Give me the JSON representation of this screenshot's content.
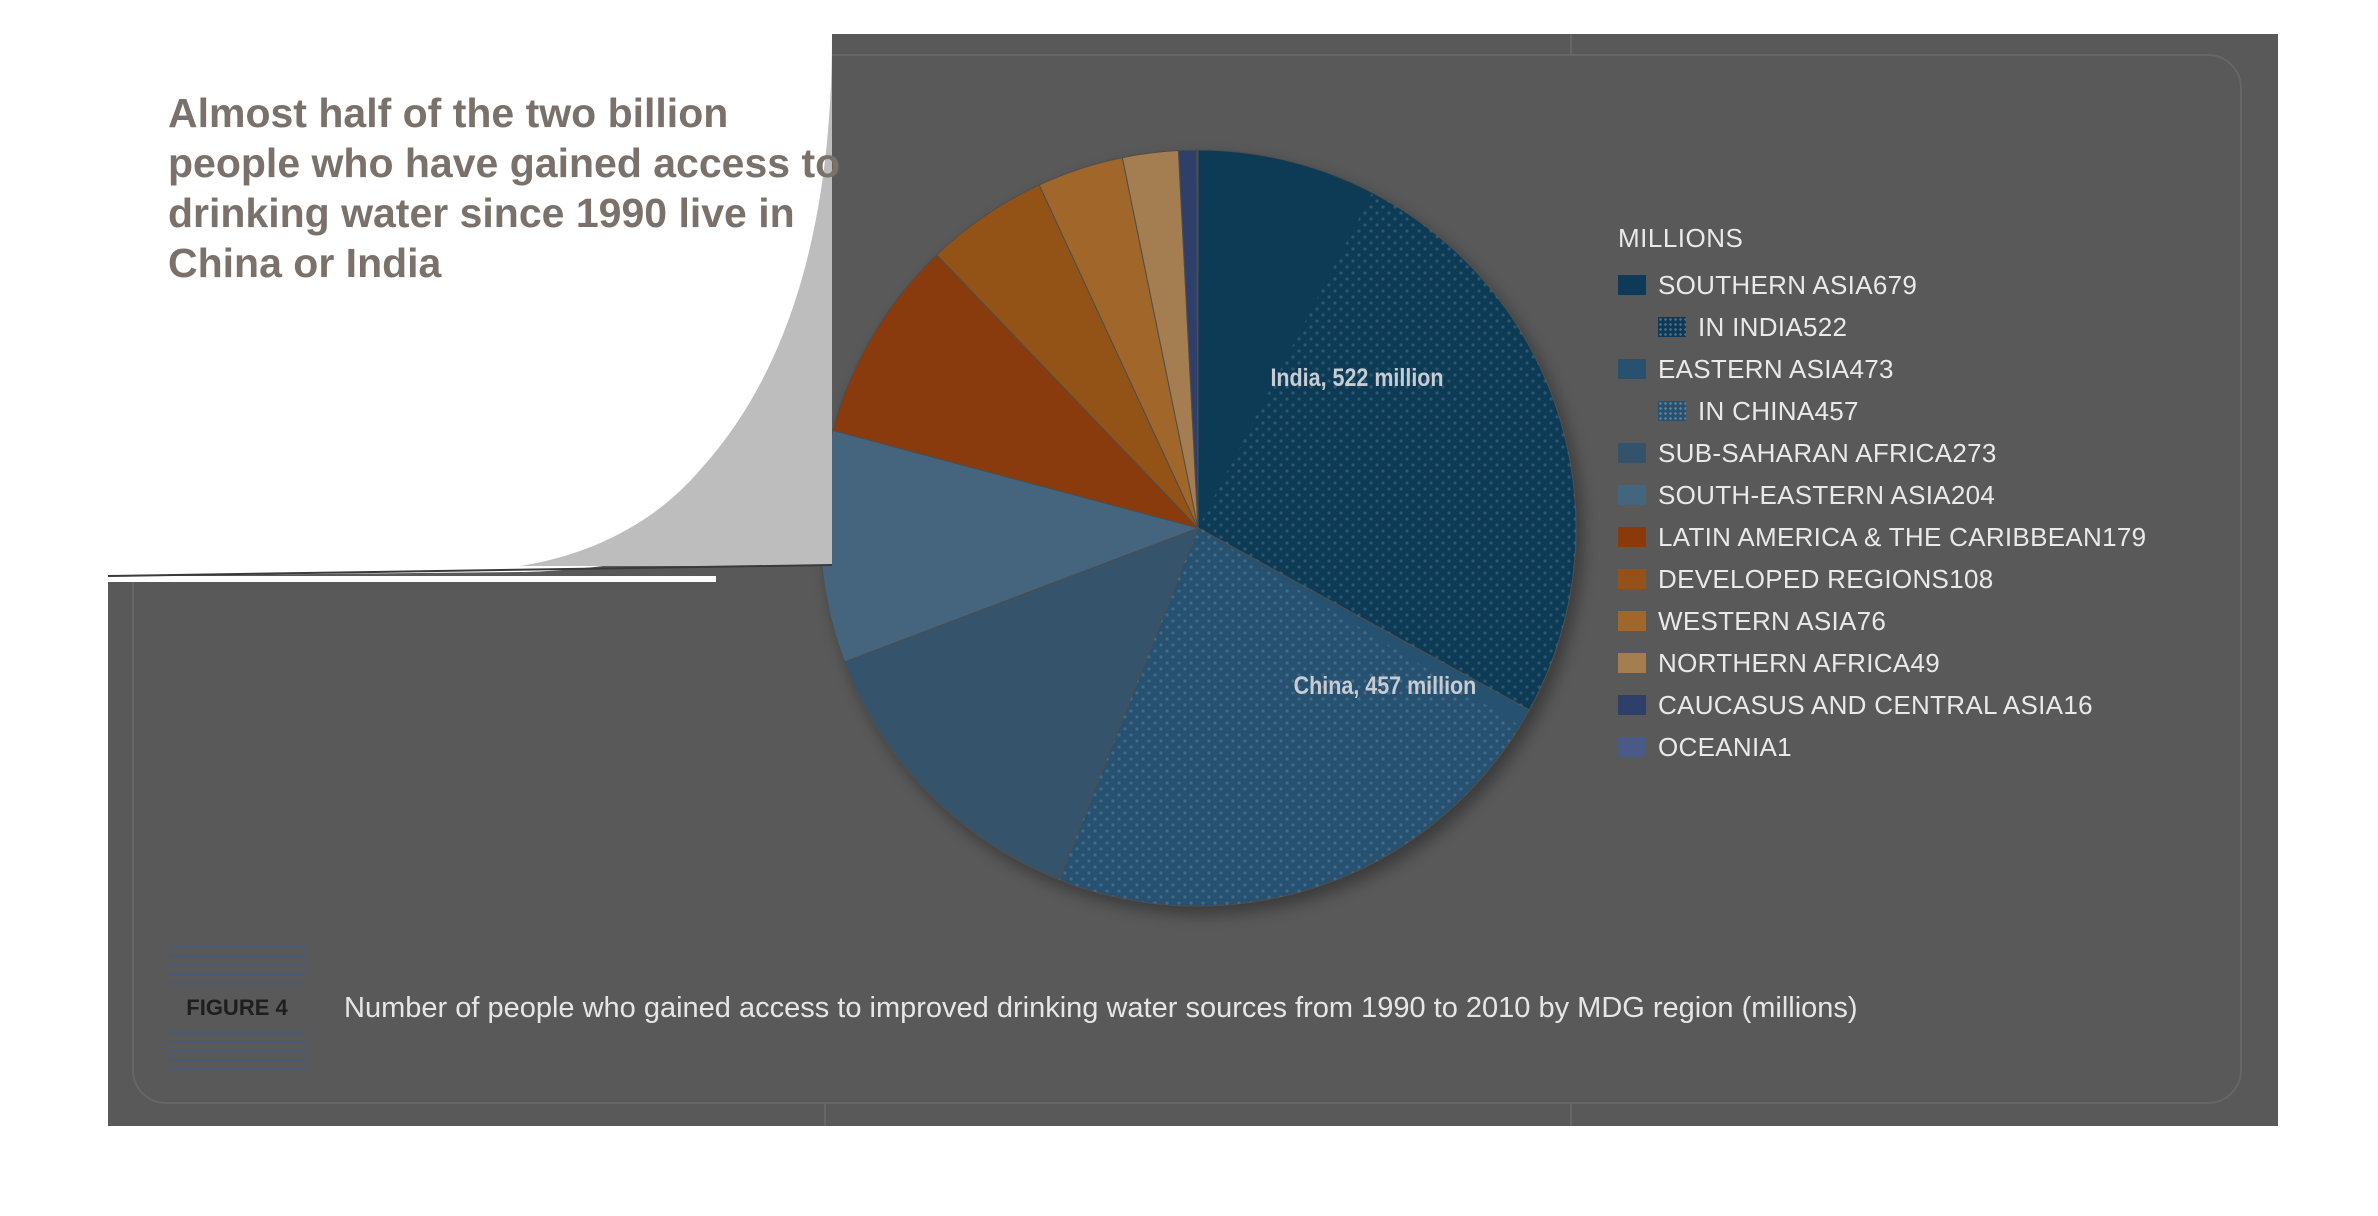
{
  "headline": "Almost half of the two billion people who have gained access to drinking water since 1990 live in China or India",
  "figure": {
    "label": "FIGURE 4",
    "caption": "Number of people who gained access to improved drinking water sources from 1990 to 2010 by MDG region (millions)"
  },
  "chart_data": {
    "type": "pie",
    "unit": "MILLIONS",
    "start_angle_deg": 0,
    "direction": "clockwise",
    "legend_position": "right",
    "slices": [
      {
        "label": "SOUTHERN ASIA",
        "value": 679,
        "color": "#0f3a57",
        "sub": {
          "label": "IN INDIA",
          "value": 522,
          "color": "#0f3a57"
        }
      },
      {
        "label": "EASTERN ASIA",
        "value": 473,
        "color": "#27516f",
        "sub": {
          "label": "IN CHINA",
          "value": 457,
          "color": "#27516f"
        }
      },
      {
        "label": "SUB-SAHARAN AFRICA",
        "value": 273,
        "color": "#34536b"
      },
      {
        "label": "SOUTH-EASTERN ASIA",
        "value": 204,
        "color": "#44657e"
      },
      {
        "label": "LATIN AMERICA & THE CARIBBEAN",
        "value": 179,
        "color": "#8a3a08"
      },
      {
        "label": "DEVELOPED REGIONS",
        "value": 108,
        "color": "#945219"
      },
      {
        "label": "WESTERN ASIA",
        "value": 76,
        "color": "#a0662a"
      },
      {
        "label": "NORTHERN AFRICA",
        "value": 49,
        "color": "#a47e51"
      },
      {
        "label": "CAUCASUS AND CENTRAL ASIA",
        "value": 16,
        "color": "#2e3f6a"
      },
      {
        "label": "OCEANIA",
        "value": 1,
        "color": "#4a5a86"
      }
    ],
    "slice_labels": {
      "india": "India, 522 million",
      "china": "China, 457 million"
    }
  }
}
